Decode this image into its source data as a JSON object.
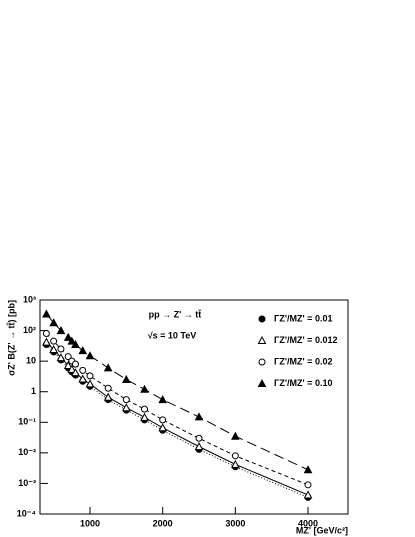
{
  "chart_data": {
    "type": "scatter",
    "annotations": [
      "pp → Z' → tt̄",
      "√s = 10 TeV"
    ],
    "x_label": "MZ' [GeV/c²]",
    "y_label": "σZ' B(Z' → tt̄) [pb]",
    "x": [
      400,
      500,
      600,
      700,
      750,
      800,
      900,
      1000,
      1250,
      1500,
      1750,
      2000,
      2500,
      3000,
      4000
    ],
    "series": [
      {
        "name": "ΓZ'/MZ' = 0.01",
        "color": "#000000",
        "marker": "filled-circle",
        "line": "dotted",
        "values": [
          35,
          20,
          11,
          6,
          4.5,
          3.5,
          2.2,
          1.5,
          0.55,
          0.25,
          0.12,
          0.055,
          0.013,
          0.0035,
          0.00035
        ]
      },
      {
        "name": "ΓZ'/MZ' = 0.012",
        "color": "#000000",
        "marker": "open-triangle",
        "line": "solid",
        "values": [
          42,
          24,
          13,
          7.2,
          5.4,
          4.2,
          2.6,
          1.8,
          0.66,
          0.3,
          0.145,
          0.066,
          0.016,
          0.0042,
          0.00042
        ]
      },
      {
        "name": "ΓZ'/MZ' = 0.02",
        "color": "#000000",
        "marker": "open-circle",
        "line": "short-dash",
        "values": [
          80,
          45,
          25,
          14,
          10,
          8,
          5,
          3.3,
          1.3,
          0.55,
          0.27,
          0.12,
          0.03,
          0.008,
          0.0009
        ]
      },
      {
        "name": "ΓZ'/MZ' = 0.10",
        "color": "#000000",
        "marker": "filled-triangle",
        "line": "long-dash",
        "values": [
          350,
          180,
          100,
          60,
          45,
          35,
          22,
          15,
          6,
          2.5,
          1.2,
          0.55,
          0.15,
          0.035,
          0.0028
        ]
      }
    ],
    "xlim": [
      312,
      4550
    ],
    "xticks": [
      1000,
      2000,
      3000,
      4000
    ],
    "ylim": [
      0.0001,
      1000
    ],
    "ylog": true,
    "yticks": [
      {
        "value": 0.0001,
        "label": "10⁻⁴"
      },
      {
        "value": 0.001,
        "label": "10⁻³"
      },
      {
        "value": 0.01,
        "label": "10⁻²"
      },
      {
        "value": 0.1,
        "label": "10⁻¹"
      },
      1,
      10,
      {
        "value": 100,
        "label": "10²"
      },
      {
        "value": 1000,
        "label": "10³"
      }
    ],
    "legend": "right"
  }
}
